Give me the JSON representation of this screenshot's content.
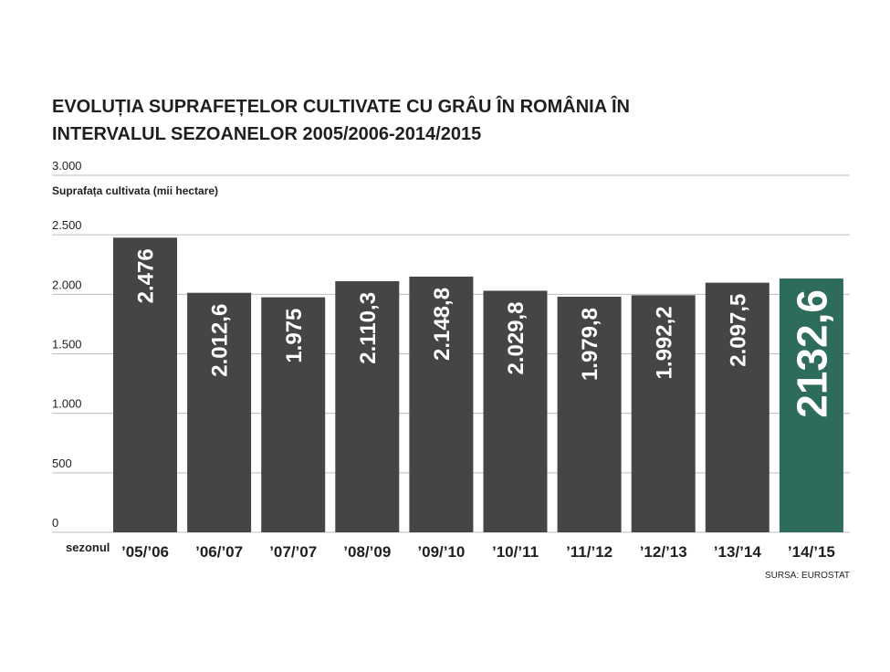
{
  "chart_data": {
    "type": "bar",
    "title_lines": [
      "EVOLUȚIA SUPRAFEȚELOR CULTIVATE CU GRÂU ÎN ROMÂNIA ÎN",
      "INTERVALUL SEZOANELOR 2005/2006-2014/2015"
    ],
    "ylabel": "Suprafața cultivata (mii hectare)",
    "xlabel": "sezonul",
    "source": "SURSA: EUROSTAT",
    "ylim": [
      0,
      3000
    ],
    "yticks": [
      {
        "value": 0,
        "label": "0"
      },
      {
        "value": 500,
        "label": "500"
      },
      {
        "value": 1000,
        "label": "1.000"
      },
      {
        "value": 1500,
        "label": "1.500"
      },
      {
        "value": 2000,
        "label": "2.000"
      },
      {
        "value": 2500,
        "label": "2.500"
      },
      {
        "value": 3000,
        "label": "3.000"
      }
    ],
    "grid": true,
    "categories": [
      "’05/’06",
      "’06/’07",
      "’07/’07",
      "’08/’09",
      "’09/’10",
      "’10/’11",
      "’11/’12",
      "’12/’13",
      "’13/’14",
      "’14/’15"
    ],
    "values": [
      2476,
      2012.6,
      1975,
      2110.3,
      2148.8,
      2029.8,
      1979.8,
      1992.2,
      2097.5,
      2132.6
    ],
    "value_labels": [
      "2.476",
      "2.012,6",
      "1.975",
      "2.110,3",
      "2.148,8",
      "2.029,8",
      "1.979,8",
      "1.992,2",
      "2.097,5",
      "2132,6"
    ],
    "highlight_index": 9,
    "colors": {
      "bar": "#454545",
      "highlight": "#2d6b5a",
      "grid": "#bdbdbd",
      "text": "#1f1f1f",
      "value_text": "#ffffff"
    }
  }
}
